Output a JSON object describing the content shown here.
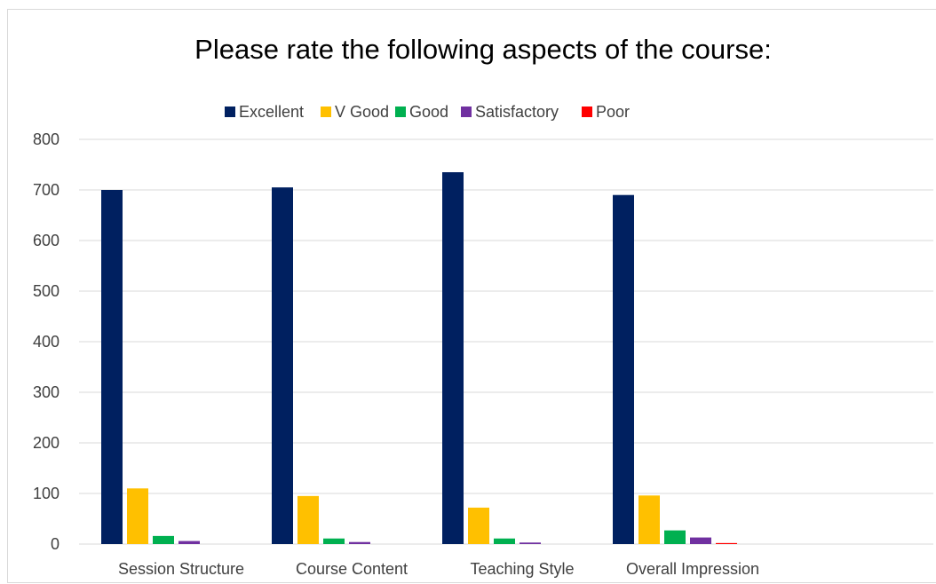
{
  "chart_data": {
    "type": "bar",
    "title": "Please rate the following aspects of the course:",
    "xlabel": "",
    "ylabel": "",
    "categories": [
      "Session Structure",
      "Course Content",
      "Teaching Style",
      "Overall Impression"
    ],
    "series": [
      {
        "name": "Excellent",
        "color": "#002060",
        "values": [
          700,
          705,
          735,
          690
        ]
      },
      {
        "name": "V Good",
        "color": "#FFC000",
        "values": [
          110,
          95,
          72,
          96
        ]
      },
      {
        "name": "Good",
        "color": "#00B050",
        "values": [
          16,
          11,
          11,
          27
        ]
      },
      {
        "name": "Satisfactory",
        "color": "#7030A0",
        "values": [
          6,
          4,
          3,
          13
        ]
      },
      {
        "name": "Poor",
        "color": "#FF0000",
        "values": [
          0,
          0,
          0,
          2
        ]
      }
    ],
    "ylim": [
      0,
      800
    ],
    "yticks": [
      "0",
      "100",
      "200",
      "300",
      "400",
      "500",
      "600",
      "700",
      "800"
    ],
    "grid": true,
    "legend_position": "top"
  }
}
